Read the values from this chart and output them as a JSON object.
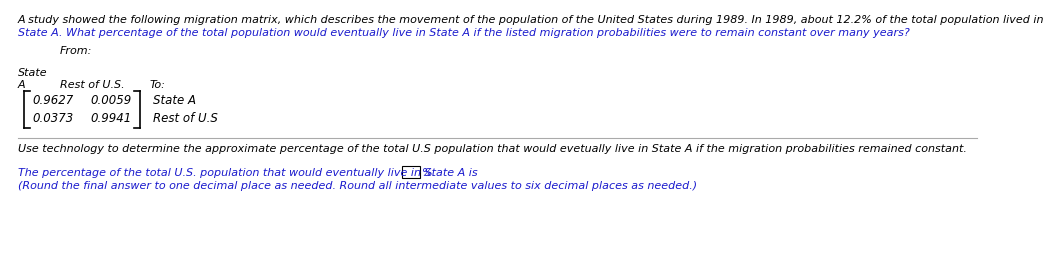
{
  "bg_color": "#ffffff",
  "black": "#000000",
  "blue": "#1a1acd",
  "line1": "A study showed the following migration matrix, which describes the movement of the population of the United States during 1989. In 1989, about 12.2% of the total population lived in",
  "line2": "State A. What percentage of the total population would eventually live in State A if the listed migration probabilities were to remain constant over many years?",
  "from_label": "From:",
  "state_label": "State",
  "col_a": "A",
  "col_rest": "Rest of U.S.",
  "col_to": "To:",
  "val_00": "0.9627",
  "val_01": "0.0059",
  "val_10": "0.0373",
  "val_11": "0.9941",
  "row_label_0": "State A",
  "row_label_1": "Rest of U.S",
  "para2": "Use technology to determine the approximate percentage of the total U.S population that would evetually live in State A if the migration probabilities remained constant.",
  "para3_pre": "The percentage of the total U.S. population that would eventually live in State A is ",
  "para3_post": "%.",
  "para4": "(Round the final answer to one decimal place as needed. Round all intermediate values to six decimal places as needed.)",
  "fs": 8.0,
  "fs_matrix": 8.5
}
